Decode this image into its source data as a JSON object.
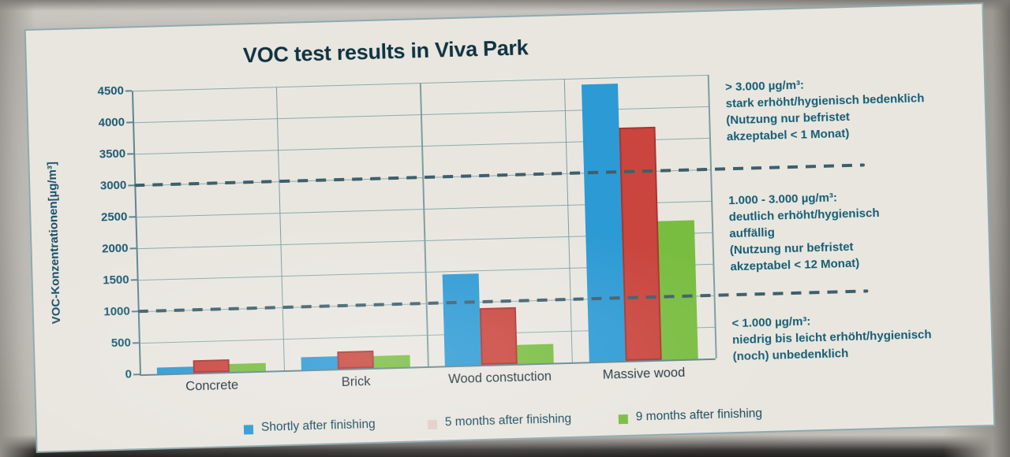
{
  "title": "VOC test results in Viva Park",
  "y_axis_label": "VOC-Konzentrationen[µg/m³]",
  "legend": [
    {
      "label": "Shortly after finishing",
      "color": "#2c9ad4"
    },
    {
      "label": "5 months after finishing",
      "color": "#c9453d"
    },
    {
      "label": "9 months after finishing",
      "color": "#79bd40"
    }
  ],
  "annotations": [
    {
      "lines": [
        "> 3.000 µg/m³:",
        "stark erhöht/hygienisch bedenklich",
        "(Nutzung nur befristet",
        "akzeptabel < 1 Monat)"
      ]
    },
    {
      "lines": [
        "1.000 - 3.000 µg/m³:",
        "deutlich erhöht/hygienisch",
        "auffällig",
        "(Nutzung nur befristet",
        "akzeptabel < 12 Monat)"
      ]
    },
    {
      "lines": [
        "< 1.000 µg/m³:",
        "niedrig bis leicht erhöht/hygienisch",
        "(noch) unbedenklich"
      ]
    }
  ],
  "chart_data": {
    "type": "bar",
    "title": "VOC test results in Viva Park",
    "categories": [
      "Concrete",
      "Brick",
      "Wood constuction",
      "Massive wood"
    ],
    "series": [
      {
        "name": "Shortly after finishing",
        "color": "#2c9ad4",
        "values": [
          100,
          200,
          1450,
          4400
        ]
      },
      {
        "name": "5 months after finishing",
        "color": "#c9453d",
        "values": [
          200,
          280,
          900,
          3700
        ]
      },
      {
        "name": "9 months after finishing",
        "color": "#79bd40",
        "values": [
          130,
          190,
          300,
          2200
        ]
      }
    ],
    "ylabel": "VOC-Konzentrationen[µg/m³]",
    "ylim": [
      0,
      4500
    ],
    "ytick_step": 500,
    "grid": true,
    "legend_position": "bottom",
    "thresholds": [
      {
        "value": 3000,
        "style": "dashed"
      },
      {
        "value": 1000,
        "style": "dashed"
      }
    ]
  }
}
